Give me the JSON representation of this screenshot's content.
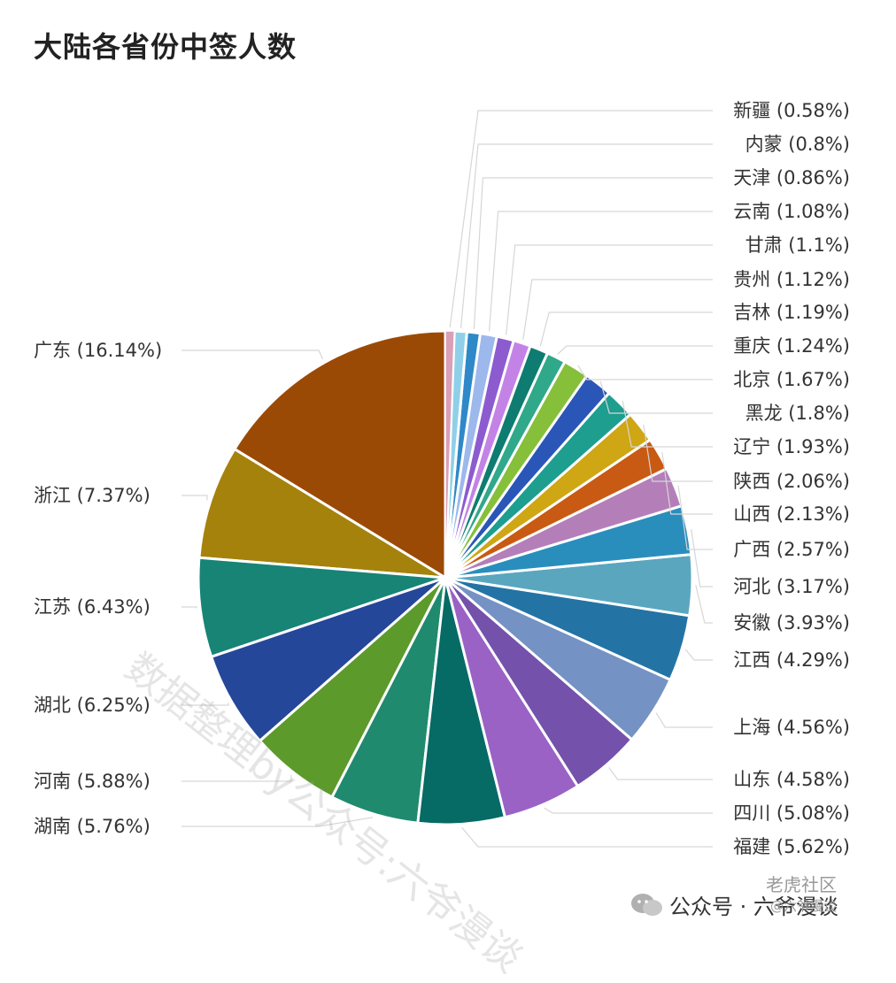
{
  "title": "大陆各省份中签人数",
  "chart_data": {
    "type": "pie",
    "title": "大陆各省份中签人数",
    "slices": [
      {
        "label": "广东",
        "value": 16.14,
        "text": "广东 (16.14%)",
        "color": "#9b4a06"
      },
      {
        "label": "浙江",
        "value": 7.37,
        "text": "浙江 (7.37%)",
        "color": "#a5820c"
      },
      {
        "label": "江苏",
        "value": 6.43,
        "text": "江苏 (6.43%)",
        "color": "#178475"
      },
      {
        "label": "湖北",
        "value": 6.25,
        "text": "湖北 (6.25%)",
        "color": "#25479a"
      },
      {
        "label": "河南",
        "value": 5.88,
        "text": "河南 (5.88%)",
        "color": "#5c9a2b"
      },
      {
        "label": "湖南",
        "value": 5.76,
        "text": "湖南 (5.76%)",
        "color": "#1f8a6e"
      },
      {
        "label": "福建",
        "value": 5.62,
        "text": "福建 (5.62%)",
        "color": "#066a65"
      },
      {
        "label": "四川",
        "value": 5.08,
        "text": "四川 (5.08%)",
        "color": "#9a62c4"
      },
      {
        "label": "山东",
        "value": 4.58,
        "text": "山东 (4.58%)",
        "color": "#7451aa"
      },
      {
        "label": "上海",
        "value": 4.56,
        "text": "上海 (4.56%)",
        "color": "#7592c4"
      },
      {
        "label": "江西",
        "value": 4.29,
        "text": "江西 (4.29%)",
        "color": "#2374a4"
      },
      {
        "label": "安徽",
        "value": 3.93,
        "text": "安徽 (3.93%)",
        "color": "#5aa6bf"
      },
      {
        "label": "河北",
        "value": 3.17,
        "text": "河北 (3.17%)",
        "color": "#2a8ebd"
      },
      {
        "label": "广西",
        "value": 2.57,
        "text": "广西 (2.57%)",
        "color": "#b47fb9"
      },
      {
        "label": "山西",
        "value": 2.13,
        "text": "山西 (2.13%)",
        "color": "#c85a14"
      },
      {
        "label": "陕西",
        "value": 2.06,
        "text": "陕西 (2.06%)",
        "color": "#cfa614"
      },
      {
        "label": "辽宁",
        "value": 1.93,
        "text": "辽宁 (1.93%)",
        "color": "#1d9e8f"
      },
      {
        "label": "黑龙",
        "value": 1.8,
        "text": "黑龙 (1.8%)",
        "color": "#2a56b8"
      },
      {
        "label": "北京",
        "value": 1.67,
        "text": "北京 (1.67%)",
        "color": "#86bf3a"
      },
      {
        "label": "重庆",
        "value": 1.24,
        "text": "重庆 (1.24%)",
        "color": "#30a88a"
      },
      {
        "label": "吉林",
        "value": 1.19,
        "text": "吉林 (1.19%)",
        "color": "#0e7c70"
      },
      {
        "label": "贵州",
        "value": 1.12,
        "text": "贵州 (1.12%)",
        "color": "#c383e6"
      },
      {
        "label": "甘肃",
        "value": 1.1,
        "text": "甘肃 (1.1%)",
        "color": "#8c5bd0"
      },
      {
        "label": "云南",
        "value": 1.08,
        "text": "云南 (1.08%)",
        "color": "#9cb8ec"
      },
      {
        "label": "天津",
        "value": 0.86,
        "text": "天津 (0.86%)",
        "color": "#2f88c8"
      },
      {
        "label": "内蒙",
        "value": 0.8,
        "text": "内蒙 (0.8%)",
        "color": "#8fd0e8"
      },
      {
        "label": "新疆",
        "value": 0.58,
        "text": "新疆 (0.58%)",
        "color": "#d9a0b8"
      }
    ],
    "legend": "none",
    "label_placement": "outside-with-leader-lines"
  },
  "watermark": "数据整理by公众号:六爷漫谈",
  "footer": {
    "icon": "wechat-icon",
    "text": "公众号 · 六爷漫谈"
  },
  "signature": {
    "main": "老虎社区",
    "sub": "@六爷漫谈"
  }
}
